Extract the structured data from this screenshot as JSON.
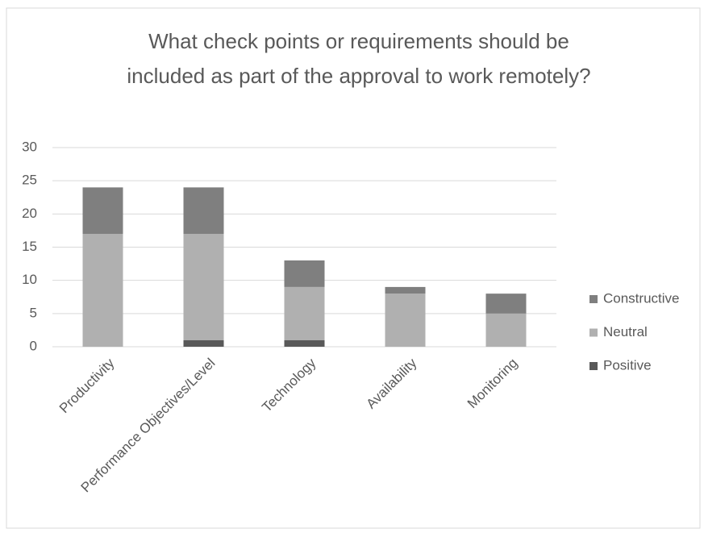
{
  "chart_data": {
    "type": "stacked_bar",
    "title": "What check points or requirements should be included as part of the approval to work remotely?",
    "categories": [
      "Productivity",
      "Performance Objectives/Level",
      "Technology",
      "Availability",
      "Monitoring"
    ],
    "series": [
      {
        "name": "Positive",
        "color": "#595959",
        "values": [
          0,
          1,
          1,
          0,
          0
        ]
      },
      {
        "name": "Neutral",
        "color": "#b0b0b0",
        "values": [
          17,
          16,
          8,
          8,
          5
        ]
      },
      {
        "name": "Constructive",
        "color": "#7f7f7f",
        "values": [
          7,
          7,
          4,
          1,
          3
        ]
      }
    ],
    "ylim": [
      0,
      30
    ],
    "yticks": [
      0,
      5,
      10,
      15,
      20,
      25,
      30
    ],
    "grid": true,
    "legend": "right"
  }
}
